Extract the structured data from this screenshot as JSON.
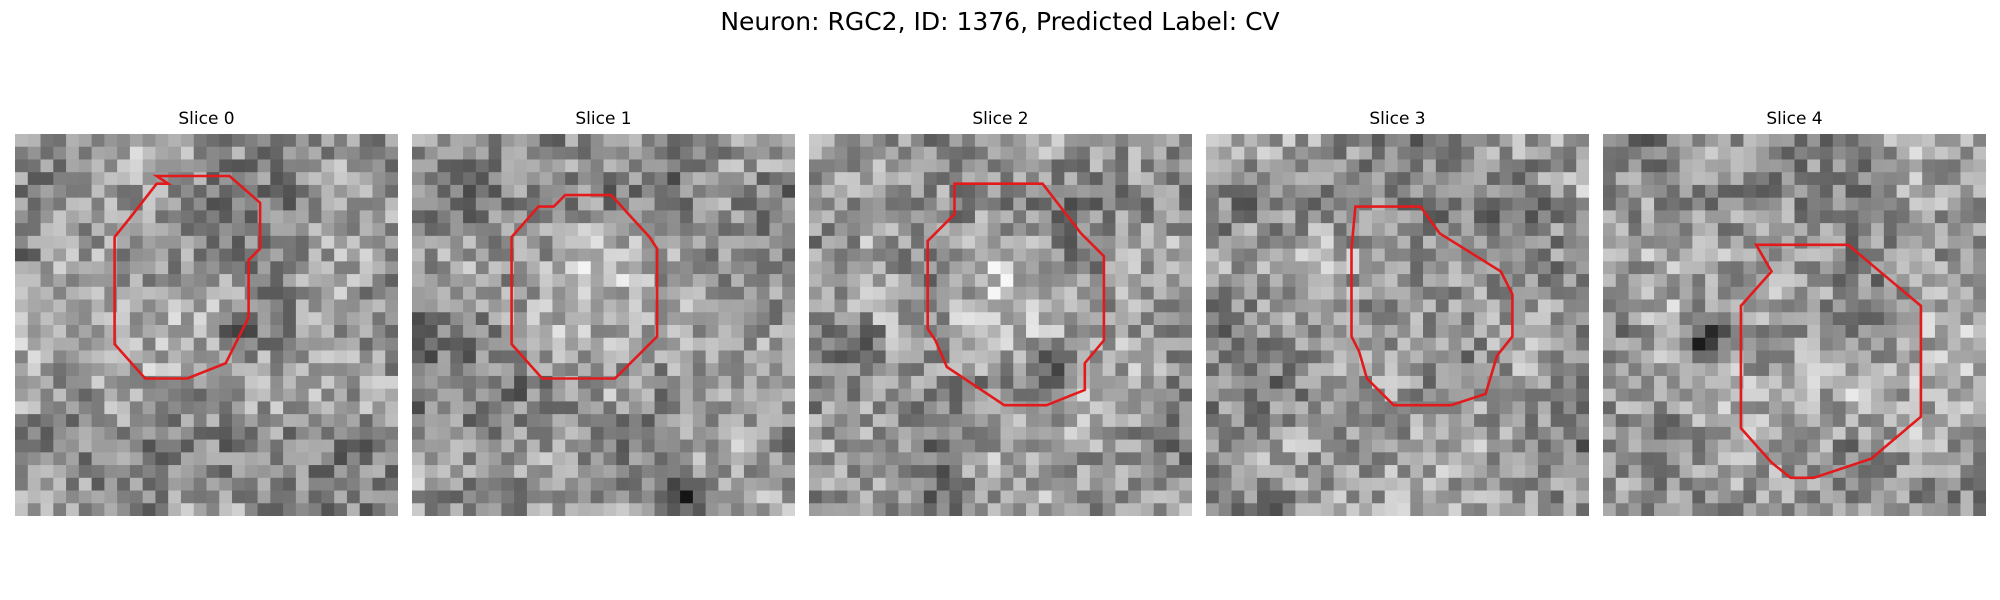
{
  "figure": {
    "title": "Neuron: RGC2, ID: 1376, Predicted Label: CV"
  },
  "contour_color": "#e31a1c",
  "colormap": "gray",
  "slices": [
    {
      "label": "Slice 0"
    },
    {
      "label": "Slice 1"
    },
    {
      "label": "Slice 2"
    },
    {
      "label": "Slice 3"
    },
    {
      "label": "Slice 4"
    }
  ]
}
